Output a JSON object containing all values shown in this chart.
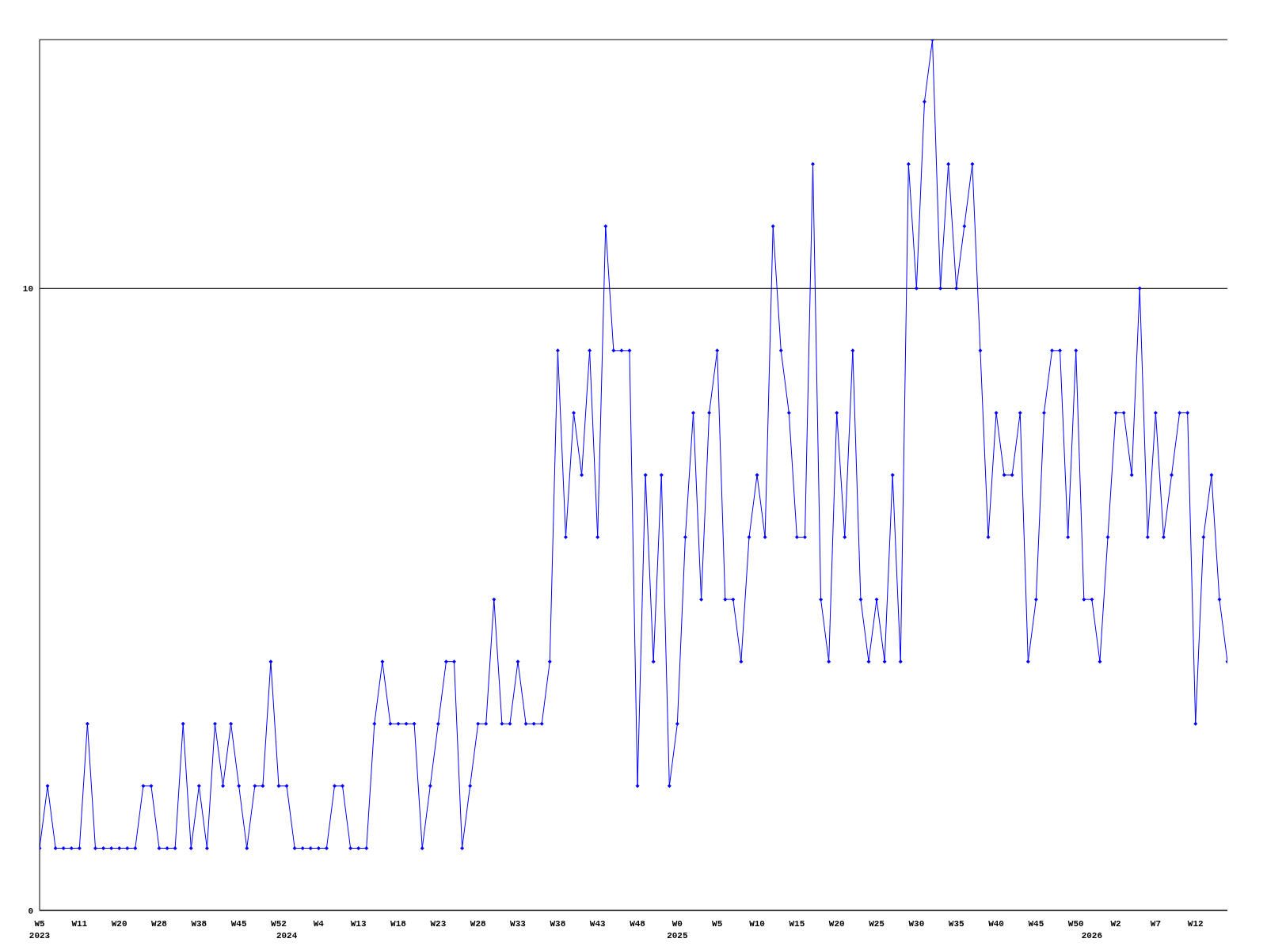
{
  "chart_data": {
    "type": "line",
    "categories": [
      "W5\n2023",
      null,
      null,
      null,
      null,
      "W11",
      null,
      null,
      null,
      null,
      "W20",
      null,
      null,
      null,
      null,
      "W28",
      null,
      null,
      null,
      null,
      "W38",
      null,
      null,
      null,
      null,
      "W45",
      null,
      null,
      null,
      null,
      "W52",
      "\n2024",
      null,
      null,
      null,
      "W4",
      null,
      null,
      null,
      null,
      "W13",
      null,
      null,
      null,
      null,
      "W18",
      null,
      null,
      null,
      null,
      "W23",
      null,
      null,
      null,
      null,
      "W28",
      null,
      null,
      null,
      null,
      "W33",
      null,
      null,
      null,
      null,
      "W38",
      null,
      null,
      null,
      null,
      "W43",
      null,
      null,
      null,
      null,
      "W48",
      null,
      null,
      null,
      null,
      "W0\n2025",
      null,
      null,
      null,
      null,
      "W5",
      null,
      null,
      null,
      null,
      "W10",
      null,
      null,
      null,
      null,
      "W15",
      null,
      null,
      null,
      null,
      "W20",
      null,
      null,
      null,
      null,
      "W25",
      null,
      null,
      null,
      null,
      "W30",
      null,
      null,
      null,
      null,
      "W35",
      null,
      null,
      null,
      null,
      "W40",
      null,
      null,
      null,
      null,
      "W45",
      null,
      null,
      null,
      null,
      "W50",
      null,
      "\n2026",
      null,
      null,
      "W2",
      null,
      null,
      null,
      null,
      "W7",
      null,
      null,
      null,
      null,
      "W12",
      null,
      null,
      null,
      null
    ],
    "series": [
      {
        "color": "#0000ff",
        "values": [
          1,
          2,
          1,
          1,
          1,
          1,
          3,
          1,
          1,
          1,
          1,
          1,
          1,
          2,
          2,
          1,
          1,
          1,
          3,
          1,
          2,
          1,
          3,
          2,
          3,
          2,
          1,
          2,
          2,
          4,
          2,
          2,
          1,
          1,
          1,
          1,
          1,
          2,
          2,
          1,
          1,
          1,
          3,
          4,
          3,
          3,
          3,
          3,
          1,
          2,
          3,
          4,
          4,
          1,
          2,
          3,
          3,
          5,
          3,
          3,
          4,
          3,
          3,
          3,
          4,
          9,
          6,
          8,
          7,
          9,
          6,
          11,
          9,
          9,
          9,
          2,
          7,
          4,
          7,
          2,
          3,
          6,
          8,
          5,
          8,
          9,
          5,
          5,
          4,
          6,
          7,
          6,
          11,
          9,
          8,
          6,
          6,
          12,
          5,
          4,
          8,
          6,
          9,
          5,
          4,
          5,
          4,
          7,
          4,
          12,
          10,
          13,
          14,
          10,
          12,
          10,
          11,
          12,
          9,
          6,
          8,
          7,
          7,
          8,
          4,
          5,
          8,
          9,
          9,
          6,
          9,
          5,
          5,
          4,
          6,
          8,
          8,
          7,
          10,
          6,
          8,
          6,
          7,
          8,
          8,
          3,
          6,
          7,
          5,
          4
        ]
      }
    ],
    "ylim": [
      0,
      14
    ],
    "yticks": [
      0,
      10
    ],
    "grid": "y",
    "marker": "diamond",
    "line_style": "solid"
  }
}
